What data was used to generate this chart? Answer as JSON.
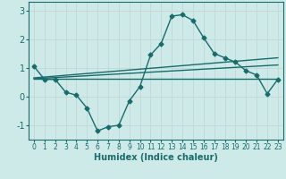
{
  "xlabel": "Humidex (Indice chaleur)",
  "bg_color": "#cdeae9",
  "grid_color": "#b8d8d8",
  "line_color": "#1a6b6b",
  "xlim": [
    -0.5,
    23.5
  ],
  "ylim": [
    -1.5,
    3.3
  ],
  "yticks": [
    -1,
    0,
    1,
    2,
    3
  ],
  "xticks": [
    0,
    1,
    2,
    3,
    4,
    5,
    6,
    7,
    8,
    9,
    10,
    11,
    12,
    13,
    14,
    15,
    16,
    17,
    18,
    19,
    20,
    21,
    22,
    23
  ],
  "series1_x": [
    0,
    1,
    2,
    3,
    4,
    5,
    6,
    7,
    8,
    9,
    10,
    11,
    12,
    13,
    14,
    15,
    16,
    17,
    18,
    19,
    20,
    21,
    22,
    23
  ],
  "series1_y": [
    1.05,
    0.6,
    0.6,
    0.15,
    0.05,
    -0.4,
    -1.2,
    -1.05,
    -1.0,
    -0.15,
    0.35,
    1.45,
    1.85,
    2.8,
    2.85,
    2.65,
    2.05,
    1.5,
    1.35,
    1.2,
    0.9,
    0.75,
    0.1,
    0.6
  ],
  "series2_x": [
    0,
    23
  ],
  "series2_y": [
    0.62,
    0.62
  ],
  "series3_x": [
    0,
    23
  ],
  "series3_y": [
    0.65,
    1.35
  ],
  "series4_x": [
    0,
    23
  ],
  "series4_y": [
    0.62,
    1.1
  ],
  "marker": "D",
  "marker_size": 2.5,
  "line_width": 1.0
}
